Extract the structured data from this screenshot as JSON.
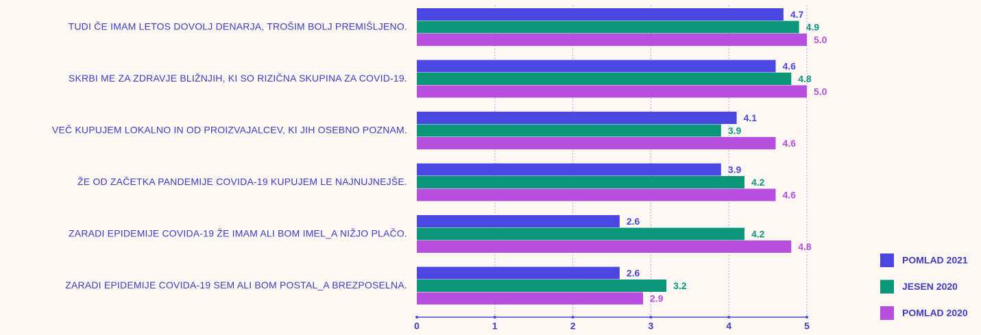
{
  "chart_data": {
    "type": "hbar",
    "categories": [
      "TUDI ČE IMAM LETOS DOVOLJ DENARJA, TROŠIM BOLJ PREMIŠLJENO.",
      "SKRBI ME ZA ZDRAVJE BLIŽNJIH, KI SO RIZIČNA SKUPINA ZA COVID-19.",
      "VEČ KUPUJEM LOKALNO IN OD PROIZVAJALCEV, KI JIH OSEBNO POZNAM.",
      "ŽE OD ZAČETKA PANDEMIJE COVIDA-19 KUPUJEM LE NAJNUJNEJŠE.",
      "ZARADI EPIDEMIJE COVIDA-19 ŽE IMAM ALI BOM IMEL_A NIŽJO PLAČO.",
      "ZARADI EPIDEMIJE COVIDA-19 SEM ALI BOM POSTAL_A BREZPOSELNA."
    ],
    "series": [
      {
        "name": "POMLAD 2021",
        "color": "#4a47e0",
        "values": [
          4.7,
          4.6,
          4.1,
          3.9,
          2.6,
          2.6
        ],
        "value_labels": [
          "4.7",
          "4.6",
          "4.1",
          "3.9",
          "2.6",
          "2.6"
        ]
      },
      {
        "name": "JESEN 2020",
        "color": "#0a9678",
        "values": [
          4.9,
          4.8,
          3.9,
          4.2,
          4.2,
          3.2
        ],
        "value_labels": [
          "4.9",
          "4.8",
          "3.9",
          "4.2",
          "4.2",
          "3.2"
        ]
      },
      {
        "name": "POMLAD 2020",
        "color": "#b84ee0",
        "values": [
          5.0,
          5.0,
          4.6,
          4.6,
          4.8,
          2.9
        ],
        "value_labels": [
          "5.0",
          "5.0",
          "4.6",
          "4.6",
          "4.8",
          "2.9"
        ]
      }
    ],
    "xlim": [
      0,
      5
    ],
    "xticks": [
      0,
      1,
      2,
      3,
      4,
      5
    ],
    "grid": true,
    "legend": "bottom-right"
  }
}
